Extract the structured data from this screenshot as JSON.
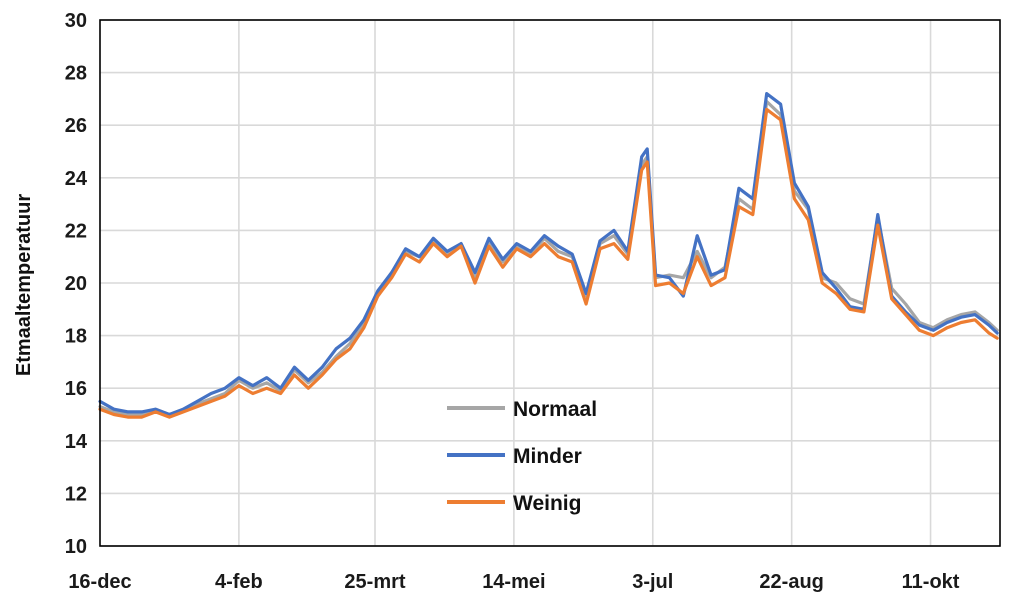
{
  "chart_data": {
    "type": "line",
    "ylabel": "Etmaaltemperatuur",
    "ylim": [
      10,
      30
    ],
    "yticks": [
      10,
      12,
      14,
      16,
      18,
      20,
      22,
      24,
      26,
      28,
      30
    ],
    "xlim": [
      0,
      324
    ],
    "xticks": [
      {
        "day": 0,
        "label": "16-dec"
      },
      {
        "day": 50,
        "label": "4-feb"
      },
      {
        "day": 99,
        "label": "25-mrt"
      },
      {
        "day": 149,
        "label": "14-mei"
      },
      {
        "day": 199,
        "label": "3-jul"
      },
      {
        "day": 249,
        "label": "22-aug"
      },
      {
        "day": 299,
        "label": "11-okt"
      }
    ],
    "grid": true,
    "legend_position": "center-left",
    "x": [
      0,
      5,
      10,
      15,
      20,
      25,
      30,
      35,
      40,
      45,
      50,
      55,
      60,
      65,
      70,
      75,
      80,
      85,
      90,
      95,
      100,
      105,
      110,
      115,
      120,
      125,
      130,
      135,
      140,
      145,
      150,
      155,
      160,
      165,
      170,
      175,
      180,
      185,
      190,
      195,
      197,
      200,
      205,
      210,
      215,
      220,
      225,
      230,
      235,
      240,
      245,
      250,
      255,
      260,
      265,
      270,
      275,
      280,
      285,
      290,
      295,
      300,
      305,
      310,
      315,
      320,
      323
    ],
    "series": [
      {
        "name": "Normaal",
        "color": "#a6a6a6",
        "values": [
          15.3,
          15.1,
          15.0,
          15.0,
          15.2,
          15.0,
          15.2,
          15.4,
          15.6,
          15.8,
          16.3,
          16.0,
          16.2,
          15.9,
          16.7,
          16.2,
          16.6,
          17.2,
          17.7,
          18.5,
          19.6,
          20.4,
          21.2,
          21.0,
          21.6,
          21.1,
          21.5,
          20.2,
          21.6,
          20.8,
          21.4,
          21.1,
          21.7,
          21.2,
          21.0,
          19.5,
          21.5,
          21.8,
          21.1,
          24.5,
          24.8,
          20.2,
          20.3,
          20.2,
          21.2,
          20.2,
          20.6,
          23.2,
          22.8,
          26.9,
          26.4,
          23.5,
          22.8,
          20.2,
          20.0,
          19.4,
          19.2,
          22.5,
          19.8,
          19.2,
          18.5,
          18.3,
          18.6,
          18.8,
          18.9,
          18.5,
          18.2
        ]
      },
      {
        "name": "Minder",
        "color": "#4472c4",
        "values": [
          15.5,
          15.2,
          15.1,
          15.1,
          15.2,
          15.0,
          15.2,
          15.5,
          15.8,
          16.0,
          16.4,
          16.1,
          16.4,
          16.0,
          16.8,
          16.3,
          16.8,
          17.5,
          17.9,
          18.6,
          19.7,
          20.4,
          21.3,
          21.0,
          21.7,
          21.2,
          21.5,
          20.4,
          21.7,
          20.9,
          21.5,
          21.2,
          21.8,
          21.4,
          21.1,
          19.6,
          21.6,
          22.0,
          21.2,
          24.8,
          25.1,
          20.3,
          20.2,
          19.5,
          21.8,
          20.3,
          20.5,
          23.6,
          23.2,
          27.2,
          26.8,
          23.8,
          22.9,
          20.4,
          19.8,
          19.1,
          19.0,
          22.6,
          19.5,
          18.9,
          18.4,
          18.2,
          18.5,
          18.7,
          18.8,
          18.4,
          18.1
        ]
      },
      {
        "name": "Weinig",
        "color": "#ed7d31",
        "values": [
          15.2,
          15.0,
          14.9,
          14.9,
          15.1,
          14.9,
          15.1,
          15.3,
          15.5,
          15.7,
          16.1,
          15.8,
          16.0,
          15.8,
          16.5,
          16.0,
          16.5,
          17.1,
          17.5,
          18.3,
          19.5,
          20.2,
          21.1,
          20.8,
          21.5,
          21.0,
          21.4,
          20.0,
          21.4,
          20.6,
          21.3,
          21.0,
          21.5,
          21.0,
          20.8,
          19.2,
          21.3,
          21.5,
          20.9,
          24.3,
          24.6,
          19.9,
          20.0,
          19.6,
          21.0,
          19.9,
          20.2,
          22.9,
          22.6,
          26.6,
          26.2,
          23.2,
          22.4,
          20.0,
          19.6,
          19.0,
          18.9,
          22.2,
          19.4,
          18.8,
          18.2,
          18.0,
          18.3,
          18.5,
          18.6,
          18.1,
          17.9
        ]
      }
    ]
  }
}
